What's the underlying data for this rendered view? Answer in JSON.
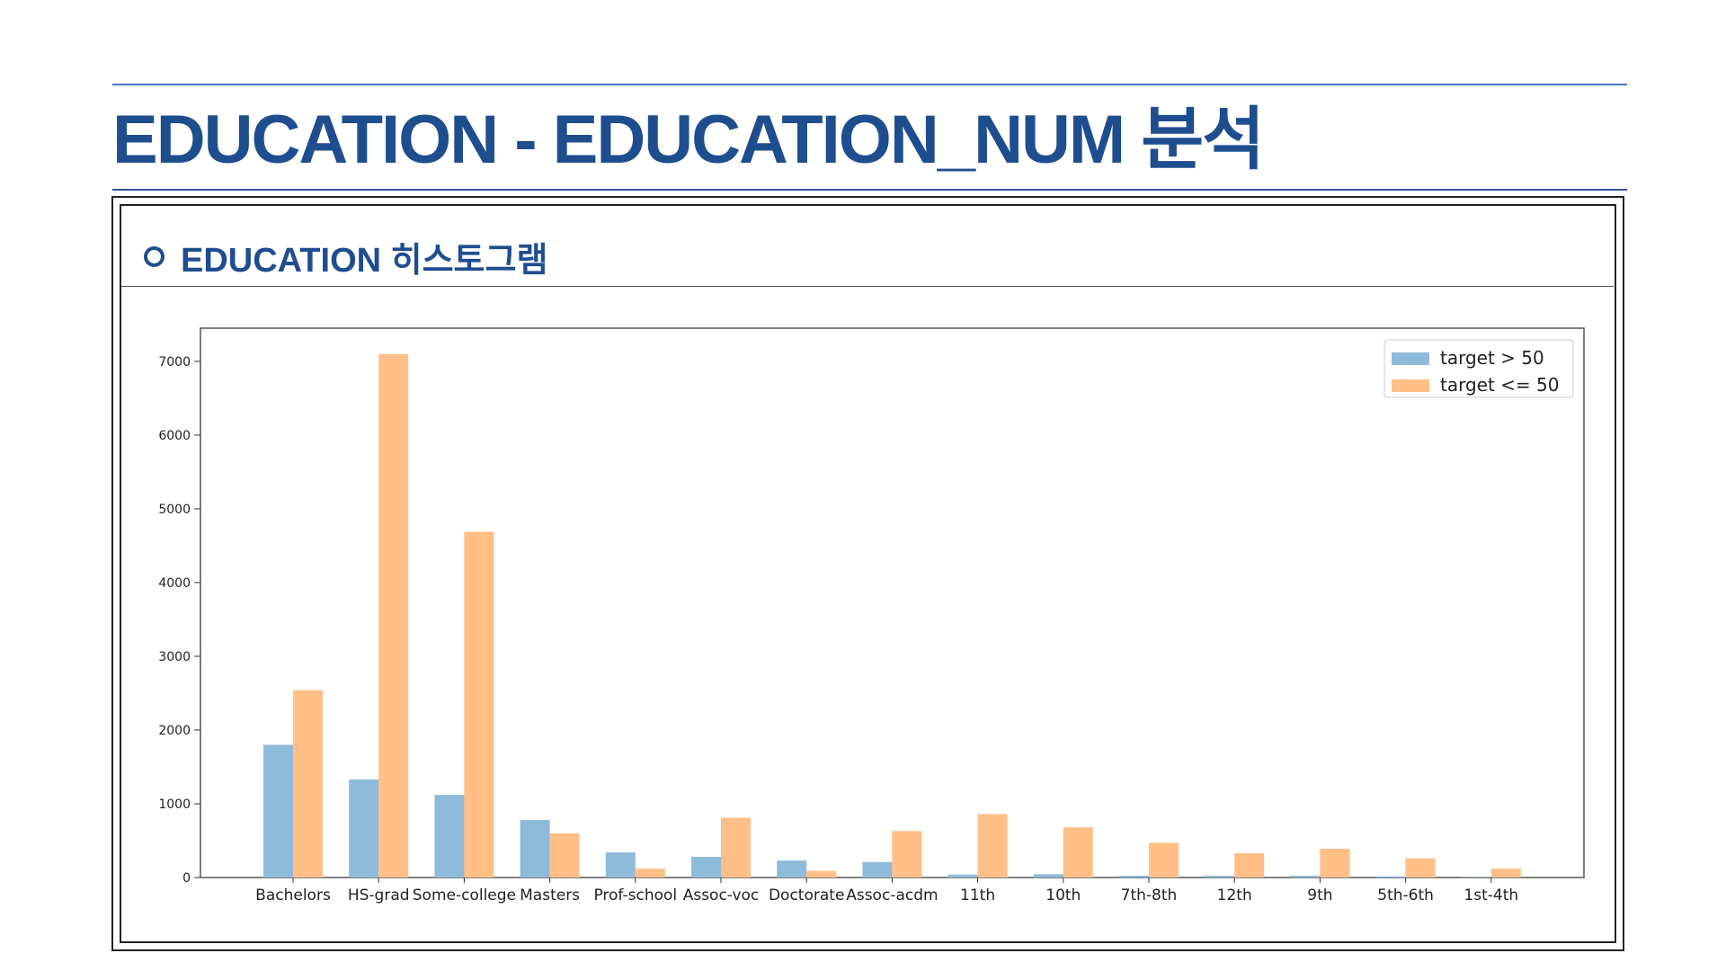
{
  "slide": {
    "title": "EDUCATION - EDUCATION_NUM 분석",
    "section_title": "EDUCATION 히스토그램",
    "accent_color": "#1f4e8f",
    "section_icon": "circle-bullet-icon"
  },
  "chart_data": {
    "type": "bar",
    "categories": [
      "Bachelors",
      "HS-grad",
      "Some-college",
      "Masters",
      "Prof-school",
      "Assoc-voc",
      "Doctorate",
      "Assoc-acdm",
      "11th",
      "10th",
      "7th-8th",
      "12th",
      "9th",
      "5th-6th",
      "1st-4th"
    ],
    "series": [
      {
        "name": "target > 50",
        "color": "#8fbbdb",
        "values": [
          1800,
          1330,
          1120,
          780,
          340,
          280,
          230,
          210,
          40,
          45,
          25,
          25,
          25,
          15,
          5
        ]
      },
      {
        "name": "target <= 50",
        "color": "#ffbf86",
        "values": [
          2540,
          7100,
          4690,
          600,
          120,
          810,
          90,
          630,
          860,
          680,
          470,
          330,
          390,
          260,
          120
        ]
      }
    ],
    "yticks": [
      0,
      1000,
      2000,
      3000,
      4000,
      5000,
      6000,
      7000
    ],
    "ylim": [
      0,
      7450
    ],
    "xlabel": "",
    "ylabel": "",
    "grid": false,
    "legend": "top-right"
  }
}
